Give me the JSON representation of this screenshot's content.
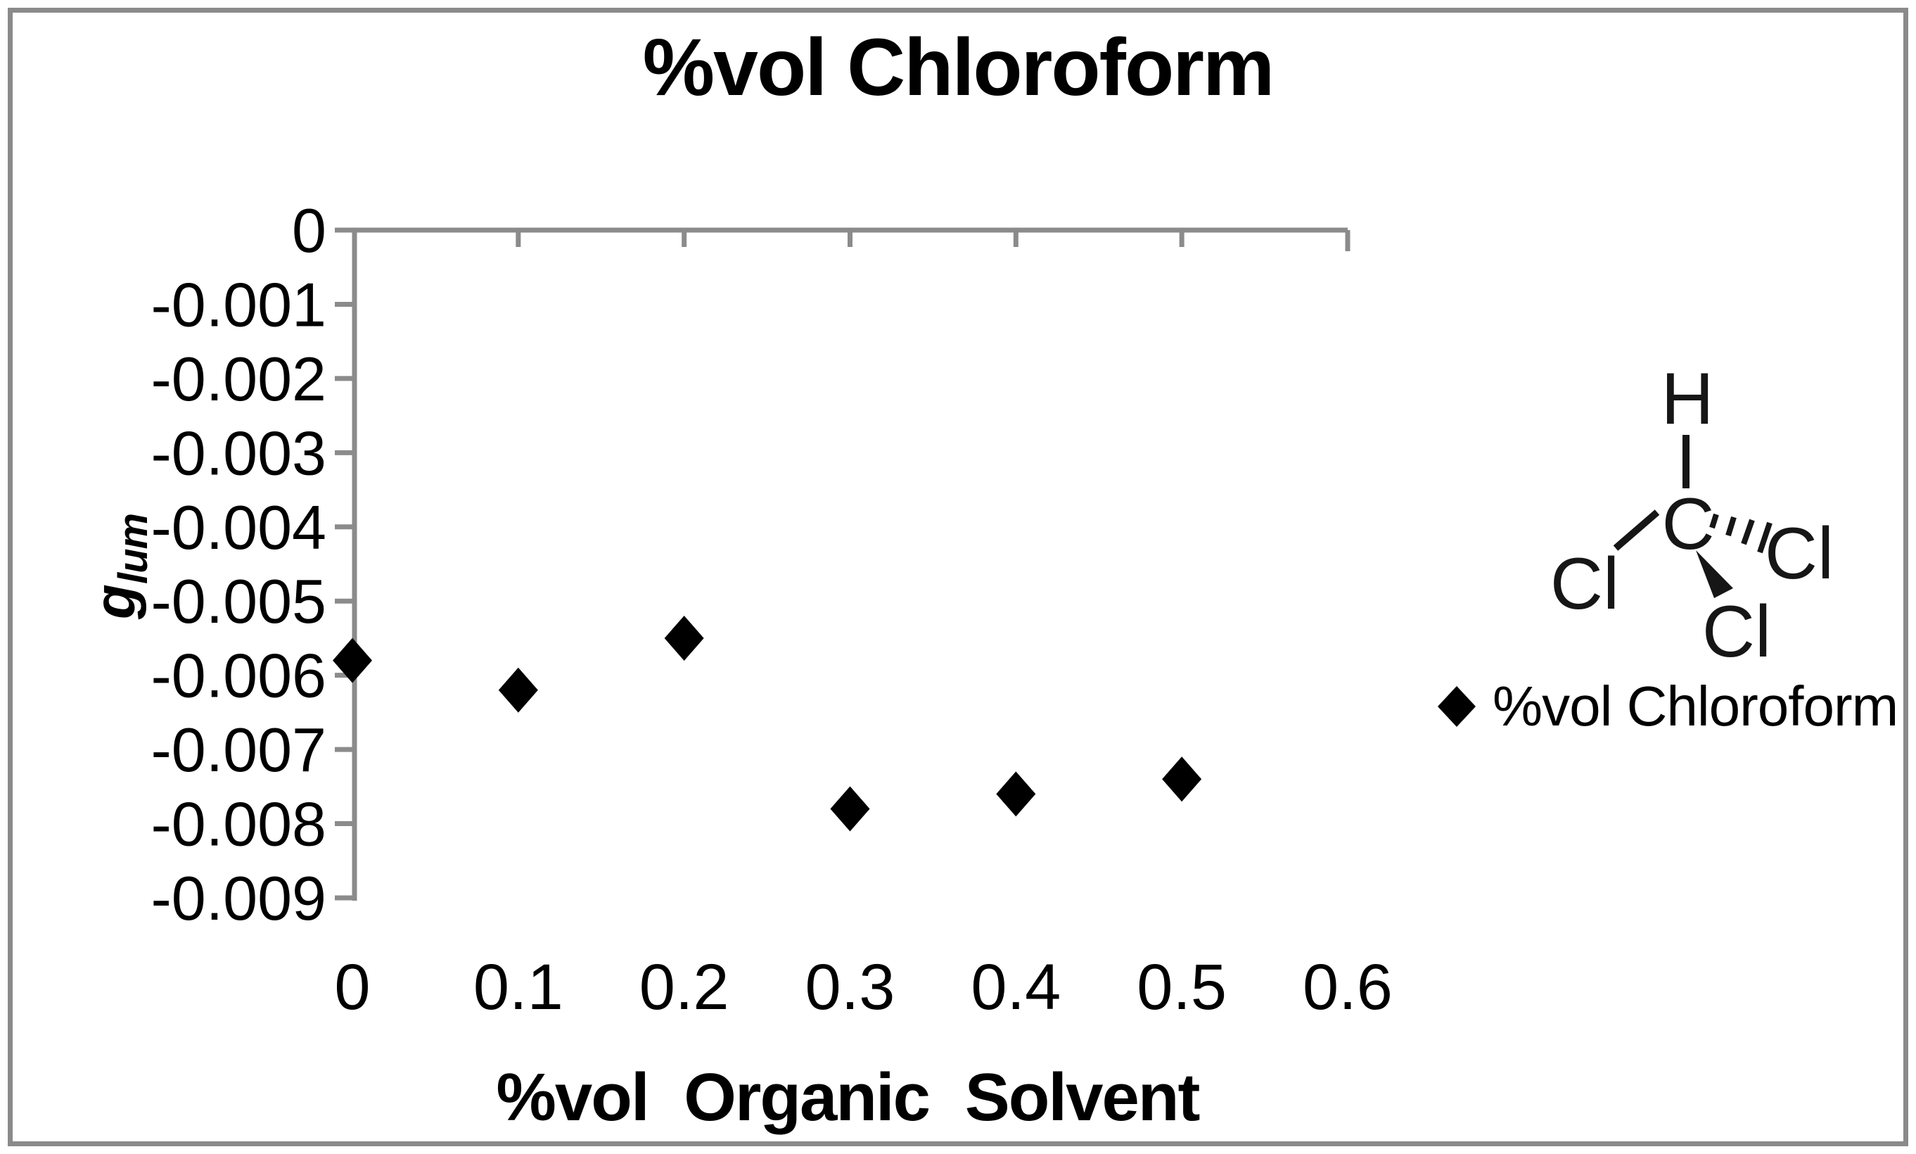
{
  "chart_data": {
    "type": "scatter",
    "title": "%vol Chloroform",
    "xlabel": "%vol Organic Solvent",
    "ylabel": "glum",
    "ylabel_main": "g",
    "ylabel_sub": "lum",
    "x_tick_labels": [
      "0",
      "0.1",
      "0.2",
      "0.3",
      "0.4",
      "0.5",
      "0.6"
    ],
    "y_tick_labels": [
      "0",
      "-0.001",
      "-0.002",
      "-0.003",
      "-0.004",
      "-0.005",
      "-0.006",
      "-0.007",
      "-0.008",
      "-0.009"
    ],
    "xlim": [
      0,
      0.6
    ],
    "ylim": [
      -0.009,
      0
    ],
    "grid": false,
    "legend_position": "right",
    "series": [
      {
        "name": "%vol Chloroform",
        "marker": "diamond",
        "color": "#000000",
        "x": [
          0,
          0.1,
          0.2,
          0.3,
          0.4,
          0.5
        ],
        "y": [
          -0.0058,
          -0.0062,
          -0.0055,
          -0.0078,
          -0.0076,
          -0.0074
        ]
      }
    ]
  },
  "legend": {
    "label": "%vol Chloroform"
  },
  "molecule": {
    "name": "chloroform-structure",
    "atom_top": "H",
    "atom_center": "C",
    "atom_left": "Cl",
    "atom_right": "Cl",
    "atom_bottom": "Cl"
  },
  "colors": {
    "axis": "#8b8b8b",
    "border": "#8a8a8a",
    "marker": "#000000",
    "text": "#000000",
    "molecule": "#161616"
  }
}
